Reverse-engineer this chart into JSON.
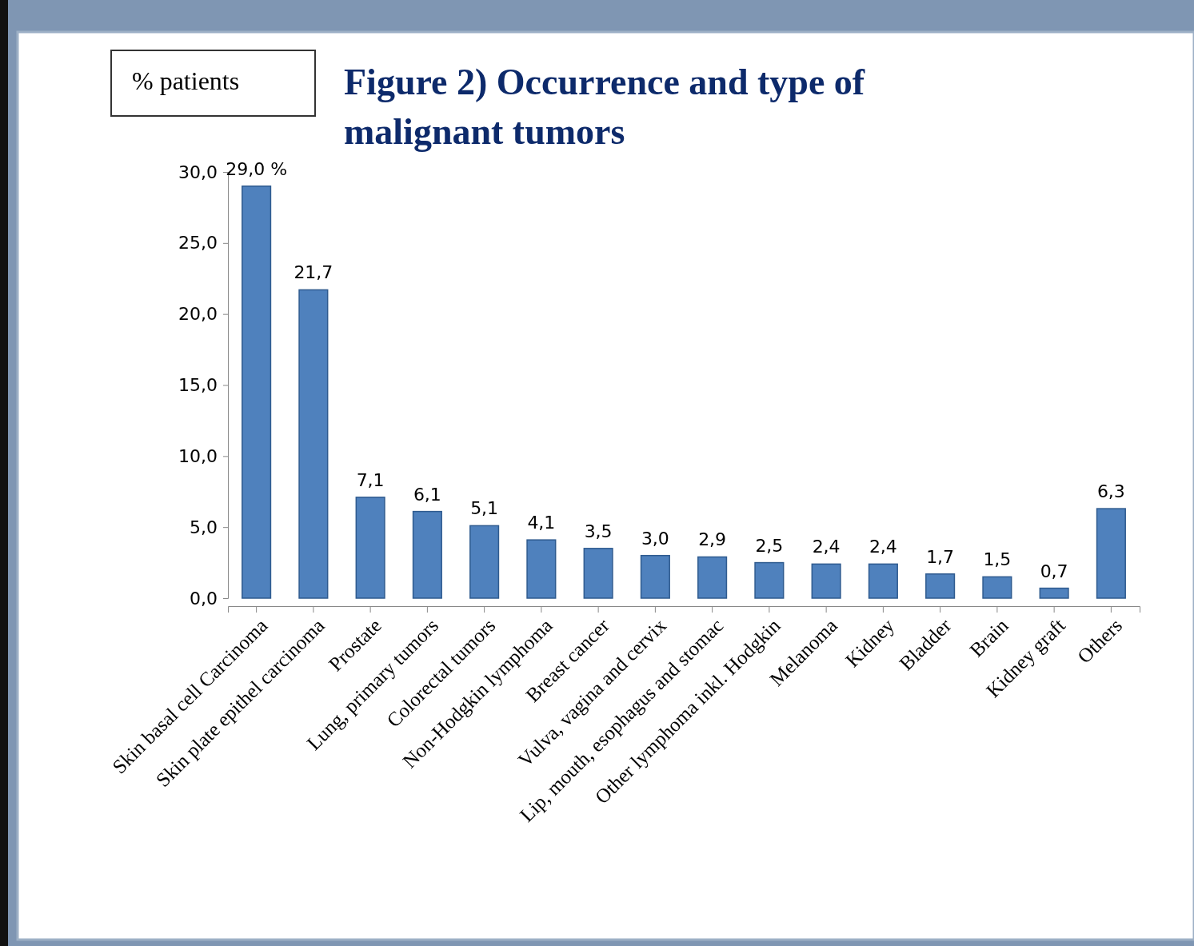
{
  "chart_data": {
    "type": "bar",
    "title": "Figure 2) Occurrence and type of malignant tumors",
    "ylabel": "% patients",
    "categories": [
      "Skin basal cell Carcinoma",
      "Skin plate epithel carcinoma",
      "Prostate",
      "Lung, primary tumors",
      "Colorectal tumors",
      "Non-Hodgkin lymphoma",
      "Breast cancer",
      "Vulva, vagina and cervix",
      "Lip, mouth, esophagus and stomac",
      "Other lymphoma inkl. Hodgkin",
      "Melanoma",
      "Kidney",
      "Bladder",
      "Brain",
      "Kidney graft",
      "Others"
    ],
    "values": [
      29.0,
      21.7,
      7.1,
      6.1,
      5.1,
      4.1,
      3.5,
      3.0,
      2.9,
      2.5,
      2.4,
      2.4,
      1.7,
      1.5,
      0.7,
      6.3
    ],
    "value_labels": [
      "29,0 %",
      "21,7",
      "7,1",
      "6,1",
      "5,1",
      "4,1",
      "3,5",
      "3,0",
      "2,9",
      "2,5",
      "2,4",
      "2,4",
      "1,7",
      "1,5",
      "0,7",
      "6,3"
    ],
    "color": "#4f81bd",
    "ylim": [
      0,
      30
    ],
    "yticks": [
      {
        "value": 0,
        "label": "0,0"
      },
      {
        "value": 5,
        "label": "5,0"
      },
      {
        "value": 10,
        "label": "10,0"
      },
      {
        "value": 15,
        "label": "15,0"
      },
      {
        "value": 20,
        "label": "20,0"
      },
      {
        "value": 25,
        "label": "25,0"
      },
      {
        "value": 30,
        "label": "30,0"
      }
    ],
    "grid": false
  }
}
